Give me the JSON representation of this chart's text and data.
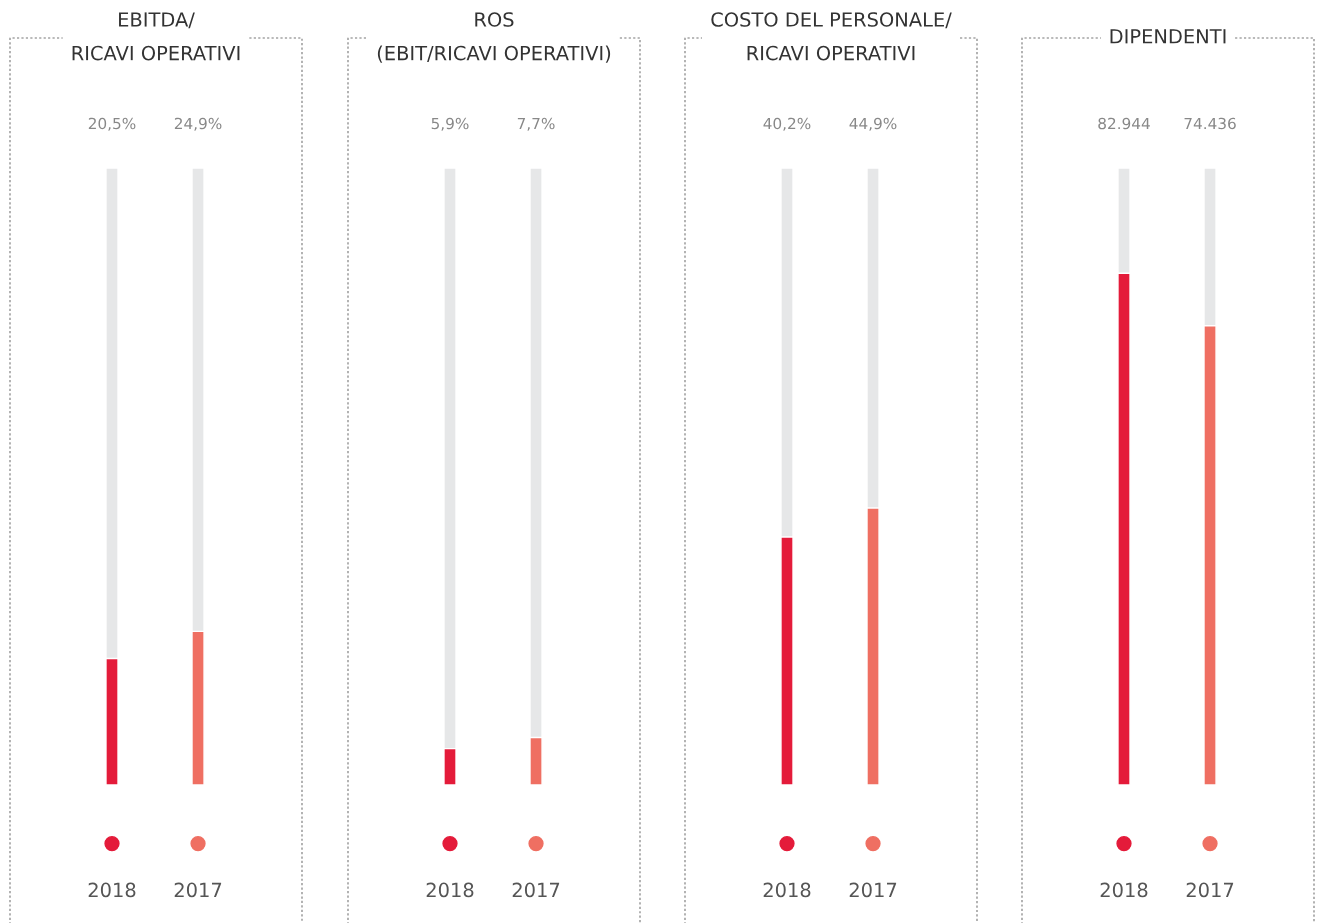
{
  "chart_data": [
    {
      "type": "bar",
      "title": "EBITDA/\nRICAVI OPERATIVI",
      "categories": [
        "2018",
        "2017"
      ],
      "values": [
        20.5,
        24.9
      ],
      "colors": [
        "#e41b3a",
        "#ef6f62"
      ],
      "value_labels": [
        "20,5%",
        "24,9%"
      ],
      "ylim": [
        0,
        100
      ]
    },
    {
      "type": "bar",
      "title": "ROS\n(EBIT/RICAVI OPERATIVI)",
      "categories": [
        "2018",
        "2017"
      ],
      "values": [
        5.9,
        7.7
      ],
      "colors": [
        "#e41b3a",
        "#ef6f62"
      ],
      "value_labels": [
        "5,9%",
        "7,7%"
      ],
      "ylim": [
        0,
        100
      ]
    },
    {
      "type": "bar",
      "title": "COSTO DEL PERSONALE/\nRICAVI OPERATIVI",
      "categories": [
        "2018",
        "2017"
      ],
      "values": [
        40.2,
        44.9
      ],
      "colors": [
        "#e41b3a",
        "#ef6f62"
      ],
      "value_labels": [
        "40,2%",
        "44,9%"
      ],
      "ylim": [
        0,
        100
      ]
    },
    {
      "type": "bar",
      "title": "DIPENDENTI",
      "categories": [
        "2018",
        "2017"
      ],
      "values": [
        82944,
        74436
      ],
      "colors": [
        "#e41b3a",
        "#ef6f62"
      ],
      "value_labels": [
        "82.944",
        "74.436"
      ],
      "ylim": [
        0,
        100000
      ]
    }
  ]
}
